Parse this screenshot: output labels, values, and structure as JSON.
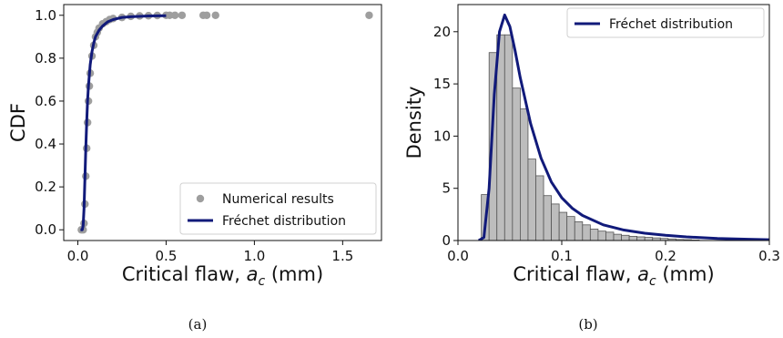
{
  "chart_data": [
    {
      "panel": "(a)",
      "type": "line",
      "xlabel": "Critical flaw, $a_c$ (mm)",
      "ylabel": "CDF",
      "xlim": [
        -0.08,
        1.72
      ],
      "ylim": [
        -0.05,
        1.05
      ],
      "x_ticks": [
        "0.0",
        "0.5",
        "1.0",
        "1.5"
      ],
      "y_ticks": [
        "0.0",
        "0.2",
        "0.4",
        "0.6",
        "0.8",
        "1.0"
      ],
      "legend": {
        "placement": "lower-right",
        "entries": [
          "Numerical results",
          "Fréchet distribution"
        ]
      },
      "series": [
        {
          "name": "Numerical results",
          "kind": "scatter",
          "color": "#9e9e9e",
          "x": [
            0.02,
            0.03,
            0.035,
            0.04,
            0.045,
            0.05,
            0.055,
            0.06,
            0.065,
            0.07,
            0.08,
            0.09,
            0.1,
            0.11,
            0.12,
            0.14,
            0.16,
            0.18,
            0.2,
            0.25,
            0.3,
            0.35,
            0.4,
            0.45,
            0.5,
            0.52,
            0.55,
            0.59,
            0.71,
            0.73,
            0.78,
            1.65
          ],
          "y": [
            0.0,
            0.0,
            0.03,
            0.12,
            0.25,
            0.38,
            0.5,
            0.6,
            0.67,
            0.73,
            0.81,
            0.86,
            0.9,
            0.92,
            0.94,
            0.96,
            0.97,
            0.98,
            0.985,
            0.99,
            0.995,
            0.997,
            0.998,
            0.999,
            1.0,
            1.0,
            1.0,
            1.0,
            1.0,
            1.0,
            1.0,
            1.0
          ]
        },
        {
          "name": "Fréchet distribution",
          "kind": "line",
          "color": "#111a7a",
          "x": [
            0.015,
            0.025,
            0.03,
            0.035,
            0.04,
            0.045,
            0.05,
            0.055,
            0.06,
            0.07,
            0.08,
            0.09,
            0.1,
            0.12,
            0.14,
            0.17,
            0.2,
            0.25,
            0.3,
            0.4,
            0.5
          ],
          "y": [
            0.0,
            0.0,
            0.02,
            0.1,
            0.24,
            0.38,
            0.5,
            0.6,
            0.67,
            0.77,
            0.83,
            0.87,
            0.9,
            0.93,
            0.95,
            0.97,
            0.98,
            0.99,
            0.993,
            0.997,
            0.998
          ]
        }
      ]
    },
    {
      "panel": "(b)",
      "type": "bar",
      "xlabel": "Critical flaw, $a_c$ (mm)",
      "ylabel": "Density",
      "xlim": [
        0.0,
        0.3
      ],
      "ylim": [
        0,
        22.6
      ],
      "x_ticks": [
        "0.0",
        "0.1",
        "0.2",
        "0.3"
      ],
      "y_ticks": [
        "0",
        "5",
        "10",
        "15",
        "20"
      ],
      "legend": {
        "placement": "top-right",
        "entries": [
          "Fréchet distribution"
        ]
      },
      "histogram": {
        "color": "#bdbdbd",
        "edge_color": "#555555",
        "bin_edges": [
          0.0225,
          0.03,
          0.0375,
          0.045,
          0.0525,
          0.06,
          0.0675,
          0.075,
          0.0825,
          0.09,
          0.0975,
          0.105,
          0.1125,
          0.12,
          0.1275,
          0.135,
          0.1425,
          0.15,
          0.1575,
          0.165,
          0.1725,
          0.18,
          0.1875,
          0.195,
          0.2025,
          0.21,
          0.2175,
          0.225,
          0.2325
        ],
        "values": [
          4.4,
          18.0,
          19.7,
          19.7,
          14.6,
          12.6,
          7.8,
          6.2,
          4.3,
          3.5,
          2.7,
          2.3,
          1.8,
          1.5,
          1.1,
          0.9,
          0.8,
          0.6,
          0.5,
          0.4,
          0.35,
          0.3,
          0.25,
          0.2,
          0.15,
          0.1,
          0.08,
          0.05
        ]
      },
      "series": [
        {
          "name": "Fréchet distribution",
          "kind": "line",
          "color": "#111a7a",
          "x": [
            0.02,
            0.025,
            0.03,
            0.035,
            0.04,
            0.045,
            0.05,
            0.055,
            0.06,
            0.07,
            0.08,
            0.09,
            0.1,
            0.11,
            0.12,
            0.14,
            0.16,
            0.18,
            0.2,
            0.22,
            0.25,
            0.28,
            0.3
          ],
          "y": [
            0.0,
            0.3,
            5.0,
            14.0,
            20.0,
            21.6,
            20.5,
            18.2,
            15.6,
            11.2,
            7.9,
            5.6,
            4.1,
            3.1,
            2.4,
            1.5,
            1.0,
            0.7,
            0.5,
            0.35,
            0.2,
            0.12,
            0.08
          ]
        }
      ]
    }
  ],
  "captions": [
    "(a)",
    "(b)"
  ],
  "axis_text": {
    "xlabel_prefix": "Critical flaw, ",
    "xlabel_var": "a",
    "xlabel_sub": "c",
    "xlabel_suffix": " (mm)"
  }
}
